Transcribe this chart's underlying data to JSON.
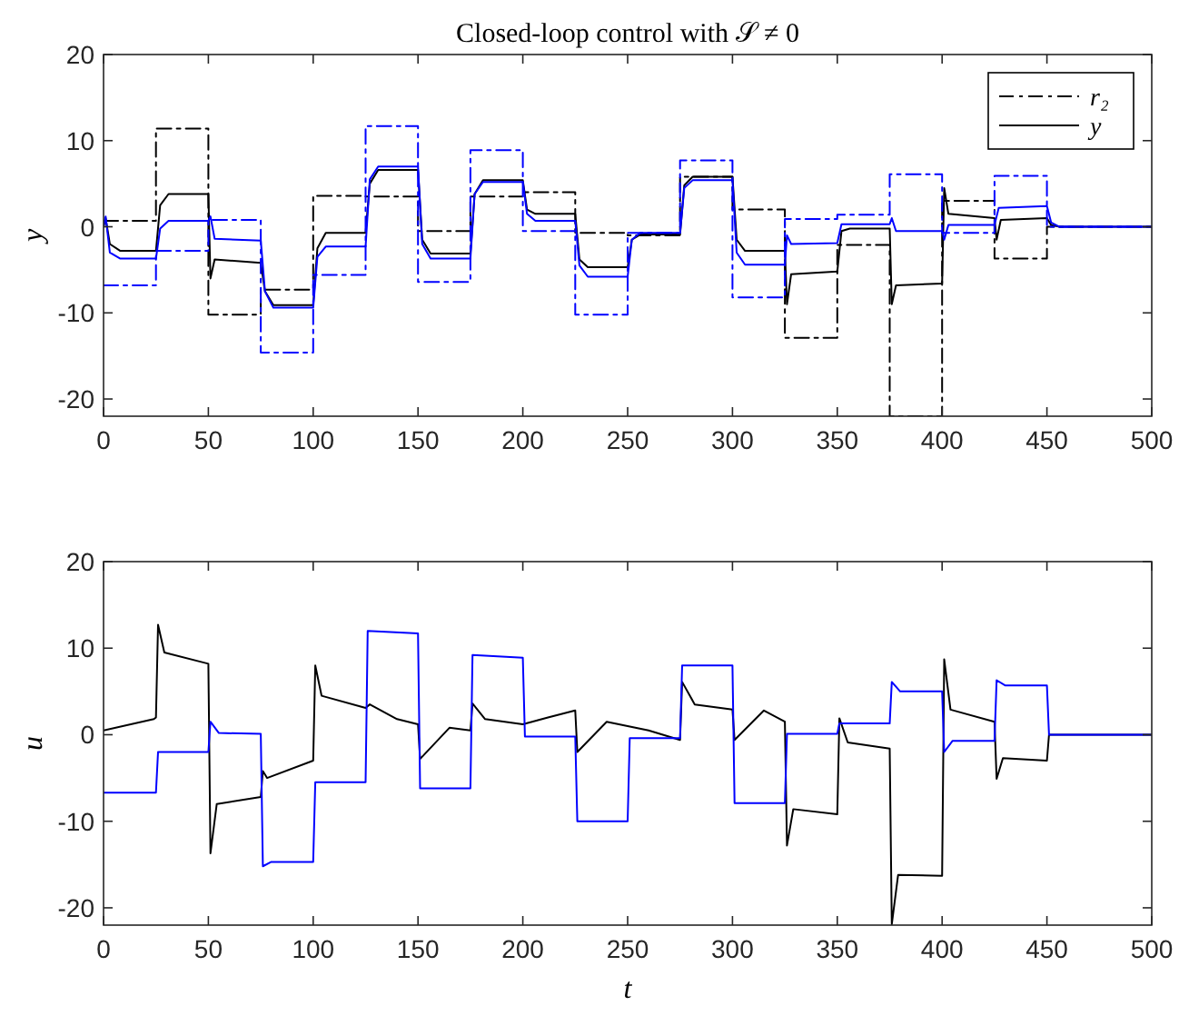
{
  "chart_data": [
    {
      "type": "line",
      "title": "Closed-loop control with 𝒮 ≠ 0",
      "ylabel": "y",
      "xlim": [
        0,
        500
      ],
      "ylim": [
        -22,
        20
      ],
      "xticks": [
        0,
        50,
        100,
        150,
        200,
        250,
        300,
        350,
        400,
        450,
        500
      ],
      "yticks": [
        -20,
        -10,
        0,
        10,
        20
      ],
      "grid": false,
      "legend": "top right",
      "marker": "none",
      "series": [
        {
          "name": "r₂",
          "type": "step",
          "color": "#000000",
          "line_style": "dashdot",
          "x": [
            0,
            25,
            50,
            75,
            100,
            125,
            150,
            175,
            200,
            225,
            250,
            275,
            300,
            325,
            350,
            375,
            400,
            425,
            450,
            500
          ],
          "values": [
            0.7,
            11.4,
            -10.2,
            -7.3,
            3.6,
            3.5,
            -0.5,
            3.5,
            4.0,
            -0.7,
            -1.0,
            5.8,
            2.0,
            -12.9,
            -2.1,
            -22,
            3.0,
            -3.7,
            0,
            0
          ]
        },
        {
          "name": "y",
          "type": "line",
          "color": "#000000",
          "line_style": "solid",
          "x": [
            0,
            1,
            3,
            8,
            25,
            27,
            31,
            50,
            51,
            53,
            75,
            77,
            81,
            100,
            102,
            106,
            125,
            127,
            131,
            150,
            152,
            156,
            175,
            177,
            181,
            200,
            202,
            206,
            225,
            227,
            231,
            250,
            252,
            256,
            275,
            277,
            281,
            300,
            302,
            306,
            325,
            326,
            328,
            350,
            352,
            356,
            375,
            376,
            378,
            400,
            401,
            403,
            425,
            426,
            428,
            450,
            452,
            456,
            500
          ],
          "values": [
            0,
            1.0,
            -2.0,
            -2.8,
            -2.8,
            2.5,
            3.8,
            3.8,
            -6.0,
            -3.8,
            -4.2,
            -7.5,
            -9.1,
            -9.1,
            -2.5,
            -0.7,
            -0.7,
            5.0,
            6.6,
            6.6,
            -1.5,
            -3.1,
            -3.1,
            3.8,
            5.4,
            5.4,
            2.0,
            1.5,
            1.5,
            -3.8,
            -4.7,
            -4.7,
            -1.5,
            -0.9,
            -0.9,
            4.8,
            5.8,
            5.8,
            -1.5,
            -2.8,
            -2.8,
            -9.0,
            -5.5,
            -5.2,
            -0.5,
            -0.2,
            -0.2,
            -9.0,
            -6.8,
            -6.6,
            4.5,
            1.5,
            1.0,
            -1.5,
            0.8,
            1.0,
            0.2,
            0,
            0
          ]
        },
        {
          "type": "step",
          "color": "#0000ff",
          "line_style": "dashdot",
          "x": [
            0,
            25,
            50,
            75,
            100,
            125,
            150,
            175,
            200,
            225,
            250,
            275,
            300,
            325,
            350,
            375,
            400,
            425,
            450,
            500
          ],
          "values": [
            -6.8,
            -2.8,
            0.8,
            -14.6,
            -5.6,
            11.7,
            -6.4,
            8.9,
            -0.5,
            -10.2,
            -0.7,
            7.7,
            -8.2,
            0.9,
            1.4,
            6.1,
            -0.7,
            5.9,
            0,
            0
          ]
        },
        {
          "type": "line",
          "color": "#0000ff",
          "line_style": "solid",
          "x": [
            0,
            1,
            3,
            8,
            25,
            27,
            31,
            50,
            51,
            53,
            75,
            77,
            81,
            100,
            102,
            106,
            125,
            127,
            131,
            150,
            152,
            156,
            175,
            177,
            181,
            200,
            202,
            206,
            225,
            227,
            231,
            250,
            252,
            256,
            275,
            277,
            281,
            300,
            302,
            306,
            325,
            326,
            328,
            350,
            352,
            375,
            376,
            378,
            400,
            401,
            403,
            425,
            427,
            450,
            452,
            456,
            500
          ],
          "values": [
            0,
            1.2,
            -3.0,
            -3.7,
            -3.7,
            -0.2,
            0.7,
            0.7,
            1.2,
            -1.4,
            -1.6,
            -7.5,
            -9.4,
            -9.4,
            -3.5,
            -2.3,
            -2.3,
            5.5,
            7.0,
            7.0,
            -2.0,
            -3.7,
            -3.7,
            3.8,
            5.2,
            5.2,
            1.5,
            0.7,
            0.7,
            -4.5,
            -5.8,
            -5.8,
            -1.5,
            -0.7,
            -0.7,
            4.5,
            5.4,
            5.4,
            -3.0,
            -4.4,
            -4.4,
            -1.0,
            -2.0,
            -1.9,
            0.3,
            0.3,
            1.0,
            -0.5,
            -0.5,
            -1.5,
            0.2,
            0.2,
            2.2,
            2.4,
            0.5,
            0,
            0
          ]
        }
      ]
    },
    {
      "type": "line",
      "ylabel": "u",
      "xlabel": "t",
      "xlim": [
        0,
        500
      ],
      "ylim": [
        -22,
        20
      ],
      "xticks": [
        0,
        50,
        100,
        150,
        200,
        250,
        300,
        350,
        400,
        450,
        500
      ],
      "yticks": [
        -20,
        -10,
        0,
        10,
        20
      ],
      "grid": false,
      "marker": "none",
      "series": [
        {
          "type": "line",
          "color": "#000000",
          "line_style": "solid",
          "x": [
            0,
            24,
            25,
            26,
            29,
            50,
            51,
            54,
            75,
            76,
            78,
            100,
            101,
            104,
            125,
            127,
            140,
            150,
            151,
            165,
            175,
            176,
            182,
            200,
            212,
            225,
            226,
            240,
            260,
            275,
            276,
            282,
            300,
            301,
            315,
            325,
            326,
            329,
            350,
            351,
            355,
            375,
            376,
            379,
            400,
            401,
            404,
            425,
            426,
            429,
            450,
            451,
            500
          ],
          "values": [
            0.5,
            1.8,
            2.0,
            12.7,
            9.5,
            8.2,
            -13.7,
            -8.0,
            -7.2,
            -4.2,
            -5.0,
            -3.0,
            8.0,
            4.5,
            3.1,
            3.5,
            1.8,
            1.2,
            -2.8,
            0.8,
            0.5,
            3.6,
            1.8,
            1.2,
            2.0,
            2.8,
            -2.0,
            1.5,
            0.5,
            -0.6,
            6.1,
            3.5,
            2.9,
            -0.6,
            2.8,
            1.5,
            -12.8,
            -8.6,
            -9.2,
            1.9,
            -0.9,
            -1.6,
            -21.9,
            -16.2,
            -16.3,
            8.7,
            2.9,
            1.5,
            -5.1,
            -2.7,
            -3.0,
            0,
            0
          ]
        },
        {
          "type": "line",
          "color": "#0000ff",
          "line_style": "solid",
          "x": [
            0,
            25,
            26,
            50,
            51,
            55,
            75,
            76,
            80,
            100,
            101,
            125,
            126,
            150,
            151,
            175,
            176,
            200,
            201,
            225,
            226,
            250,
            251,
            275,
            276,
            300,
            301,
            325,
            326,
            350,
            351,
            375,
            376,
            380,
            400,
            401,
            405,
            425,
            426,
            430,
            450,
            451,
            500
          ],
          "values": [
            -6.7,
            -6.7,
            -2.0,
            -2.0,
            1.5,
            0.2,
            0.1,
            -15.2,
            -14.7,
            -14.7,
            -5.5,
            -5.5,
            12.0,
            11.7,
            -6.2,
            -6.2,
            9.2,
            8.9,
            -0.2,
            -0.2,
            -10.0,
            -10.0,
            -0.4,
            -0.4,
            8.0,
            8.0,
            -7.9,
            -7.9,
            0.1,
            0.1,
            1.3,
            1.3,
            6.1,
            5.0,
            5.0,
            -2.0,
            -0.7,
            -0.7,
            6.3,
            5.7,
            5.7,
            0,
            0
          ]
        }
      ]
    }
  ]
}
